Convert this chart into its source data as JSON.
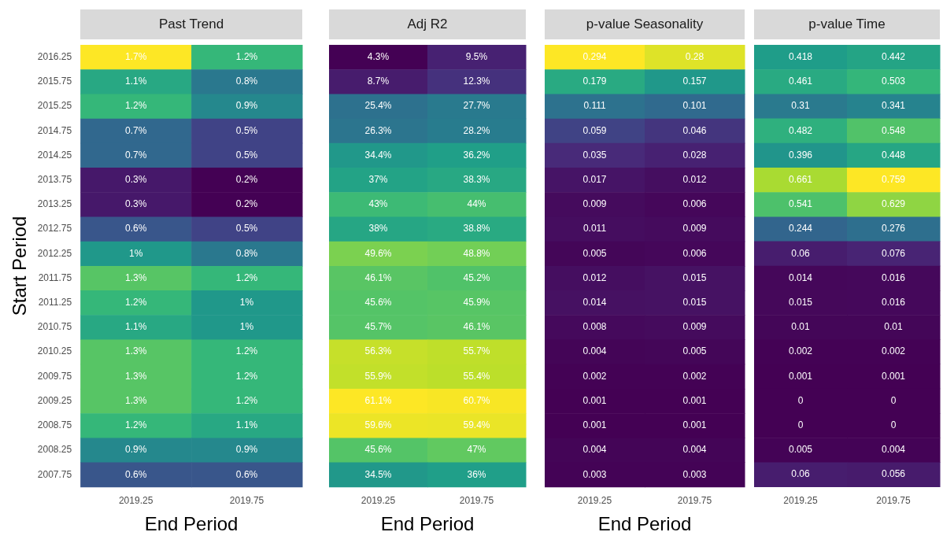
{
  "chart_data": [
    {
      "type": "heatmap",
      "title": "Past Trend",
      "xlabel": "End Period",
      "ylabel": "Start Period",
      "categories": [
        "2019.25",
        "2019.75"
      ],
      "y_categories": [
        "2016.25",
        "2015.75",
        "2015.25",
        "2014.75",
        "2014.25",
        "2013.75",
        "2013.25",
        "2012.75",
        "2012.25",
        "2011.75",
        "2011.25",
        "2010.75",
        "2010.25",
        "2009.75",
        "2009.25",
        "2008.75",
        "2008.25",
        "2007.75"
      ],
      "cells": [
        [
          1.7,
          1.2
        ],
        [
          1.1,
          0.8
        ],
        [
          1.2,
          0.9
        ],
        [
          0.7,
          0.5
        ],
        [
          0.7,
          0.5
        ],
        [
          0.3,
          0.2
        ],
        [
          0.3,
          0.2
        ],
        [
          0.6,
          0.5
        ],
        [
          1,
          0.8
        ],
        [
          1.3,
          1.2
        ],
        [
          1.2,
          1
        ],
        [
          1.1,
          1
        ],
        [
          1.3,
          1.2
        ],
        [
          1.3,
          1.2
        ],
        [
          1.3,
          1.2
        ],
        [
          1.2,
          1.1
        ],
        [
          0.9,
          0.9
        ],
        [
          0.6,
          0.6
        ]
      ],
      "cell_labels": [
        [
          "1.7%",
          "1.2%"
        ],
        [
          "1.1%",
          "0.8%"
        ],
        [
          "1.2%",
          "0.9%"
        ],
        [
          "0.7%",
          "0.5%"
        ],
        [
          "0.7%",
          "0.5%"
        ],
        [
          "0.3%",
          "0.2%"
        ],
        [
          "0.3%",
          "0.2%"
        ],
        [
          "0.6%",
          "0.5%"
        ],
        [
          "1%",
          "0.8%"
        ],
        [
          "1.3%",
          "1.2%"
        ],
        [
          "1.2%",
          "1%"
        ],
        [
          "1.1%",
          "1%"
        ],
        [
          "1.3%",
          "1.2%"
        ],
        [
          "1.3%",
          "1.2%"
        ],
        [
          "1.3%",
          "1.2%"
        ],
        [
          "1.2%",
          "1.1%"
        ],
        [
          "0.9%",
          "0.9%"
        ],
        [
          "0.6%",
          "0.6%"
        ]
      ]
    },
    {
      "type": "heatmap",
      "title": "Adj R2",
      "xlabel": "End Period",
      "tick_labels": "x",
      "categories": [
        "2019.25",
        "2019.75"
      ],
      "y_categories": [
        "2016.25",
        "2015.75",
        "2015.25",
        "2014.75",
        "2014.25",
        "2013.75",
        "2013.25",
        "2012.75",
        "2012.25",
        "2011.75",
        "2011.25",
        "2010.75",
        "2010.25",
        "2009.75",
        "2009.25",
        "2008.75",
        "2008.25",
        "2007.75"
      ],
      "cells": [
        [
          4.3,
          9.5
        ],
        [
          8.7,
          12.3
        ],
        [
          25.4,
          27.7
        ],
        [
          26.3,
          28.2
        ],
        [
          34.4,
          36.2
        ],
        [
          37,
          38.3
        ],
        [
          43,
          44
        ],
        [
          38,
          38.8
        ],
        [
          49.6,
          48.8
        ],
        [
          46.1,
          45.2
        ],
        [
          45.6,
          45.9
        ],
        [
          45.7,
          46.1
        ],
        [
          56.3,
          55.7
        ],
        [
          55.9,
          55.4
        ],
        [
          61.1,
          60.7
        ],
        [
          59.6,
          59.4
        ],
        [
          45.6,
          47
        ],
        [
          34.5,
          36
        ]
      ],
      "cell_labels": [
        [
          "4.3%",
          "9.5%"
        ],
        [
          "8.7%",
          "12.3%"
        ],
        [
          "25.4%",
          "27.7%"
        ],
        [
          "26.3%",
          "28.2%"
        ],
        [
          "34.4%",
          "36.2%"
        ],
        [
          "37%",
          "38.3%"
        ],
        [
          "43%",
          "44%"
        ],
        [
          "38%",
          "38.8%"
        ],
        [
          "49.6%",
          "48.8%"
        ],
        [
          "46.1%",
          "45.2%"
        ],
        [
          "45.6%",
          "45.9%"
        ],
        [
          "45.7%",
          "46.1%"
        ],
        [
          "56.3%",
          "55.7%"
        ],
        [
          "55.9%",
          "55.4%"
        ],
        [
          "61.1%",
          "60.7%"
        ],
        [
          "59.6%",
          "59.4%"
        ],
        [
          "45.6%",
          "47%"
        ],
        [
          "34.5%",
          "36%"
        ]
      ]
    },
    {
      "type": "heatmap",
      "title": "p-value Seasonality",
      "xlabel": "End Period",
      "tick_labels": "x",
      "data_labels": true,
      "categories": [
        "2019.25",
        "2019.75"
      ],
      "y_categories": [
        "2016.25",
        "2015.75",
        "2015.25",
        "2014.75",
        "2014.25",
        "2013.75",
        "2013.25",
        "2012.75",
        "2012.25",
        "2011.75",
        "2011.25",
        "2010.75",
        "2010.25",
        "2009.75",
        "2009.25",
        "2008.75",
        "2008.25",
        "2007.75"
      ],
      "cells": [
        [
          0.294,
          0.28
        ],
        [
          0.179,
          0.157
        ],
        [
          0.111,
          0.101
        ],
        [
          0.059,
          0.046
        ],
        [
          0.035,
          0.028
        ],
        [
          0.017,
          0.012
        ],
        [
          0.009,
          0.006
        ],
        [
          0.011,
          0.009
        ],
        [
          0.005,
          0.006
        ],
        [
          0.012,
          0.015
        ],
        [
          0.014,
          0.015
        ],
        [
          0.008,
          0.009
        ],
        [
          0.004,
          0.005
        ],
        [
          0.002,
          0.002
        ],
        [
          0.001,
          0.001
        ],
        [
          0.001,
          0.001
        ],
        [
          0.004,
          0.004
        ],
        [
          0.003,
          0.003
        ]
      ]
    },
    {
      "type": "heatmap",
      "title": "p-value Time",
      "tick_labels": "x",
      "data_labels": true,
      "categories": [
        "2019.25",
        "2019.75"
      ],
      "y_categories": [
        "2016.25",
        "2015.75",
        "2015.25",
        "2014.75",
        "2014.25",
        "2013.75",
        "2013.25",
        "2012.75",
        "2012.25",
        "2011.75",
        "2011.25",
        "2010.75",
        "2010.25",
        "2009.75",
        "2009.25",
        "2008.75",
        "2008.25",
        "2007.75"
      ],
      "cells": [
        [
          0.418,
          0.442
        ],
        [
          0.461,
          0.503
        ],
        [
          0.31,
          0.341
        ],
        [
          0.482,
          0.548
        ],
        [
          0.396,
          0.448
        ],
        [
          0.661,
          0.759
        ],
        [
          0.541,
          0.629
        ],
        [
          0.244,
          0.276
        ],
        [
          0.06,
          0.076
        ],
        [
          0.014,
          0.016
        ],
        [
          0.015,
          0.016
        ],
        [
          0.01,
          0.01
        ],
        [
          0.002,
          0.002
        ],
        [
          0.001,
          0.001
        ],
        [
          0,
          0
        ],
        [
          0,
          0
        ],
        [
          0.005,
          0.004
        ],
        [
          0.06,
          0.056
        ]
      ]
    }
  ]
}
